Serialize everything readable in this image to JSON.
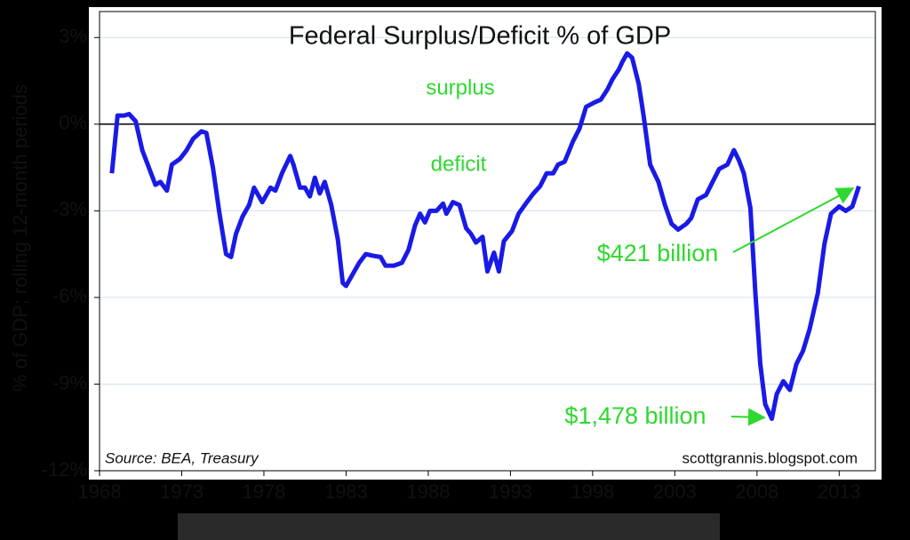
{
  "chart_data": {
    "type": "line",
    "title": "Federal Surplus/Deficit % of GDP",
    "ylabel": "% of GDP; rolling 12-month periods",
    "annotations": {
      "surplus": "surplus",
      "deficit": "deficit",
      "recent": "$421 billion",
      "peak": "$1,478 billion",
      "source": "Source:  BEA, Treasury",
      "credit": "scottgrannis.blogspot.com"
    },
    "xlim": [
      1968,
      2015.2
    ],
    "xticks": [
      1968,
      1973,
      1978,
      1983,
      1988,
      1993,
      1998,
      2003,
      2008,
      2013
    ],
    "ylim": [
      -12,
      3.9
    ],
    "yticks": [
      {
        "value": 3,
        "label": "3%"
      },
      {
        "value": 0,
        "label": "0%"
      },
      {
        "value": -3,
        "label": "-3%"
      },
      {
        "value": -6,
        "label": "-6%"
      },
      {
        "value": -9,
        "label": "-9%"
      },
      {
        "value": -12,
        "label": "-12%"
      }
    ],
    "grid": true,
    "x": [
      1968.75,
      1969.1,
      1969.5,
      1969.8,
      1970.2,
      1970.6,
      1971,
      1971.4,
      1971.7,
      1972.1,
      1972.4,
      1972.9,
      1973.3,
      1973.7,
      1974.2,
      1974.5,
      1974.9,
      1975.3,
      1975.7,
      1976,
      1976.3,
      1976.7,
      1977.1,
      1977.4,
      1977.7,
      1977.9,
      1978.4,
      1978.7,
      1979.1,
      1979.6,
      1979.8,
      1980.2,
      1980.5,
      1980.8,
      1981.1,
      1981.4,
      1981.7,
      1982.1,
      1982.5,
      1982.8,
      1983,
      1983.4,
      1983.8,
      1984.2,
      1984.6,
      1985.1,
      1985.4,
      1985.9,
      1986.4,
      1986.8,
      1987.2,
      1987.5,
      1987.8,
      1988.1,
      1988.5,
      1988.9,
      1989.1,
      1989.5,
      1989.9,
      1990.3,
      1990.6,
      1990.9,
      1991.3,
      1991.6,
      1992,
      1992.3,
      1992.6,
      1993.1,
      1993.5,
      1994,
      1994.4,
      1994.8,
      1995.2,
      1995.6,
      1995.9,
      1996.3,
      1996.8,
      1997.2,
      1997.6,
      1998.1,
      1998.5,
      1998.9,
      1999.2,
      1999.6,
      1999.8,
      2000.1,
      2000.4,
      2000.8,
      2001.1,
      2001.5,
      2002,
      2002.4,
      2002.8,
      2003.2,
      2003.7,
      2004,
      2004.4,
      2004.9,
      2005.3,
      2005.7,
      2006.2,
      2006.6,
      2006.9,
      2007.2,
      2007.6,
      2007.9,
      2008.2,
      2008.5,
      2008.9,
      2009.2,
      2009.6,
      2010,
      2010.4,
      2010.8,
      2011.2,
      2011.7,
      2012.1,
      2012.5,
      2013,
      2013.4,
      2013.8,
      2014.2
    ],
    "series": [
      {
        "name": "Federal Surplus/Deficit",
        "color": "#1a1ae6",
        "values": [
          -1.7,
          0.3,
          0.3,
          0.35,
          0.1,
          -0.9,
          -1.5,
          -2.1,
          -2.0,
          -2.3,
          -1.4,
          -1.2,
          -0.9,
          -0.5,
          -0.25,
          -0.3,
          -1.5,
          -3.1,
          -4.5,
          -4.6,
          -3.8,
          -3.2,
          -2.8,
          -2.2,
          -2.5,
          -2.7,
          -2.2,
          -2.3,
          -1.7,
          -1.1,
          -1.4,
          -2.2,
          -2.2,
          -2.5,
          -1.85,
          -2.4,
          -2.0,
          -2.8,
          -4.0,
          -5.5,
          -5.6,
          -5.2,
          -4.8,
          -4.5,
          -4.55,
          -4.6,
          -4.9,
          -4.9,
          -4.8,
          -4.35,
          -3.5,
          -3.1,
          -3.4,
          -3.0,
          -3.0,
          -2.75,
          -3.1,
          -2.7,
          -2.8,
          -3.6,
          -3.8,
          -4.1,
          -3.9,
          -5.1,
          -4.45,
          -5.1,
          -4.05,
          -3.7,
          -3.1,
          -2.7,
          -2.4,
          -2.15,
          -1.7,
          -1.7,
          -1.4,
          -1.3,
          -0.6,
          -0.15,
          0.6,
          0.75,
          0.85,
          1.2,
          1.55,
          1.9,
          2.15,
          2.45,
          2.3,
          1.4,
          0.3,
          -1.4,
          -2.0,
          -2.8,
          -3.45,
          -3.65,
          -3.45,
          -3.25,
          -2.6,
          -2.45,
          -2.0,
          -1.55,
          -1.4,
          -0.9,
          -1.25,
          -1.7,
          -2.9,
          -5.85,
          -8.3,
          -9.7,
          -10.2,
          -9.35,
          -8.9,
          -9.2,
          -8.3,
          -7.85,
          -7.1,
          -5.85,
          -4.15,
          -3.1,
          -2.85,
          -3.0,
          -2.85,
          -2.15
        ]
      }
    ]
  }
}
